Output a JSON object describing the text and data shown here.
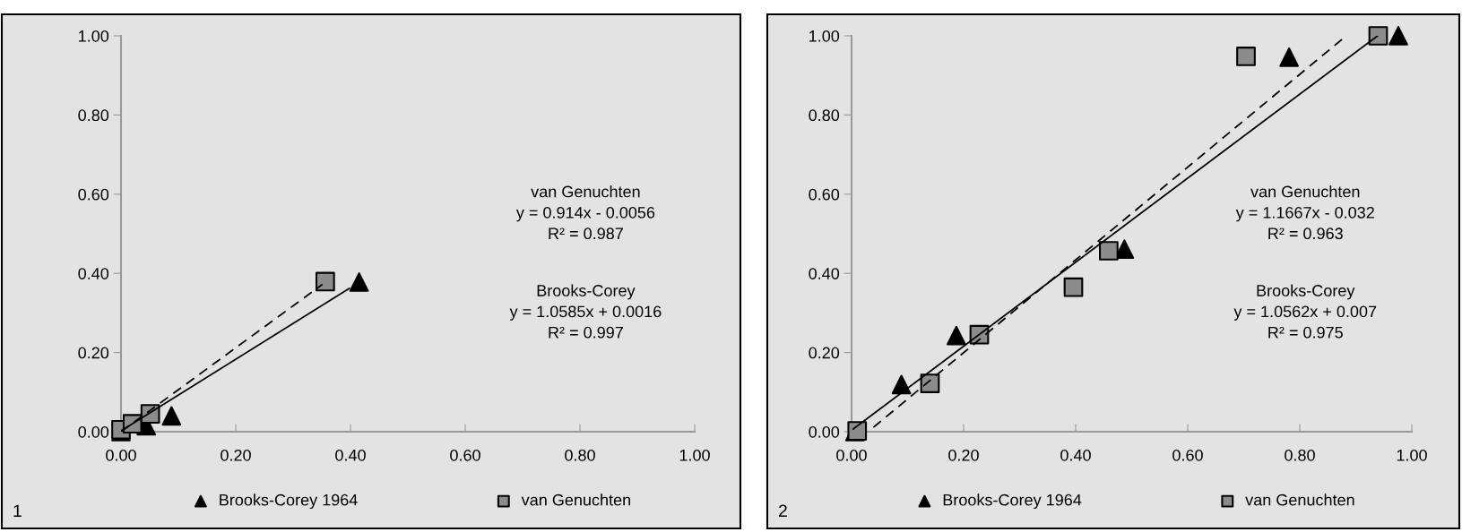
{
  "chart_data": [
    {
      "type": "scatter",
      "xlim": [
        0,
        1
      ],
      "ylim": [
        0,
        1
      ],
      "xticks": [
        {
          "value": 0,
          "label": "0.00"
        },
        {
          "value": 0.2,
          "label": "0.20"
        },
        {
          "value": 0.4,
          "label": "0.40"
        },
        {
          "value": 0.6,
          "label": "0.60"
        },
        {
          "value": 0.8,
          "label": "0.80"
        },
        {
          "value": 1,
          "label": "1.00"
        }
      ],
      "yticks": [
        {
          "value": 0,
          "label": "0.00"
        },
        {
          "value": 0.2,
          "label": "0.20"
        },
        {
          "value": 0.4,
          "label": "0.40"
        },
        {
          "value": 0.6,
          "label": "0.60"
        },
        {
          "value": 0.8,
          "label": "0.80"
        },
        {
          "value": 1,
          "label": "1.00"
        }
      ],
      "grid": false,
      "legend": "bottom",
      "series": [
        {
          "name": "Brooks-Corey 1964",
          "marker": "triangle",
          "color": "#000000",
          "x": [
            0.0,
            0.044,
            0.088,
            0.415
          ],
          "values": [
            0.0,
            0.015,
            0.04,
            0.378
          ]
        },
        {
          "name": "van Genuchten",
          "marker": "square",
          "color": "#8c8c8c",
          "x": [
            0.0,
            0.02,
            0.051,
            0.356
          ],
          "values": [
            0.005,
            0.02,
            0.045,
            0.379
          ]
        },
        {
          "type": "line",
          "line_style": "solid",
          "color": "#000000",
          "x": [
            0.0,
            0.398
          ],
          "values": [
            0.002,
            0.362
          ]
        },
        {
          "type": "line",
          "line_style": "dashed",
          "color": "#000000",
          "x": [
            0.0,
            0.351
          ],
          "values": [
            0.0,
            0.372
          ]
        }
      ],
      "annotations": [
        "van Genuchten\ny = 0.914x - 0.0056\nR² = 0.987",
        "Brooks-Corey\ny = 1.0585x + 0.0016\nR² = 0.997",
        "1"
      ]
    },
    {
      "type": "scatter",
      "xlim": [
        0,
        1
      ],
      "ylim": [
        0,
        1
      ],
      "xticks": [
        {
          "value": 0,
          "label": "0.00"
        },
        {
          "value": 0.2,
          "label": "0.20"
        },
        {
          "value": 0.4,
          "label": "0.40"
        },
        {
          "value": 0.6,
          "label": "0.60"
        },
        {
          "value": 0.8,
          "label": "0.80"
        },
        {
          "value": 1,
          "label": "1.00"
        }
      ],
      "yticks": [
        {
          "value": 0,
          "label": "0.00"
        },
        {
          "value": 0.2,
          "label": "0.20"
        },
        {
          "value": 0.4,
          "label": "0.40"
        },
        {
          "value": 0.6,
          "label": "0.60"
        },
        {
          "value": 0.8,
          "label": "0.80"
        },
        {
          "value": 1,
          "label": "1.00"
        }
      ],
      "grid": false,
      "legend": "bottom",
      "series": [
        {
          "name": "Brooks-Corey 1964",
          "marker": "triangle",
          "color": "#000000",
          "x": [
            0.006,
            0.089,
            0.187,
            0.487,
            0.781,
            0.976
          ],
          "values": [
            0.0,
            0.119,
            0.243,
            0.461,
            0.946,
            1.0
          ]
        },
        {
          "name": "van Genuchten",
          "marker": "square",
          "color": "#8c8c8c",
          "x": [
            0.01,
            0.14,
            0.228,
            0.396,
            0.459,
            0.704,
            0.94
          ],
          "values": [
            0.002,
            0.122,
            0.245,
            0.365,
            0.457,
            0.948,
            1.0
          ]
        },
        {
          "type": "line",
          "line_style": "solid",
          "color": "#000000",
          "x": [
            0.003,
            0.939
          ],
          "values": [
            0.007,
            1.0
          ]
        },
        {
          "type": "line",
          "line_style": "dashed",
          "color": "#000000",
          "x": [
            0.039,
            0.883
          ],
          "values": [
            0.011,
            1.0
          ]
        }
      ],
      "annotations": [
        "van Genuchten\ny = 1.1667x - 0.032\nR² = 0.963",
        "Brooks-Corey\ny = 1.0562x + 0.007\nR² = 0.975",
        "2"
      ]
    }
  ]
}
